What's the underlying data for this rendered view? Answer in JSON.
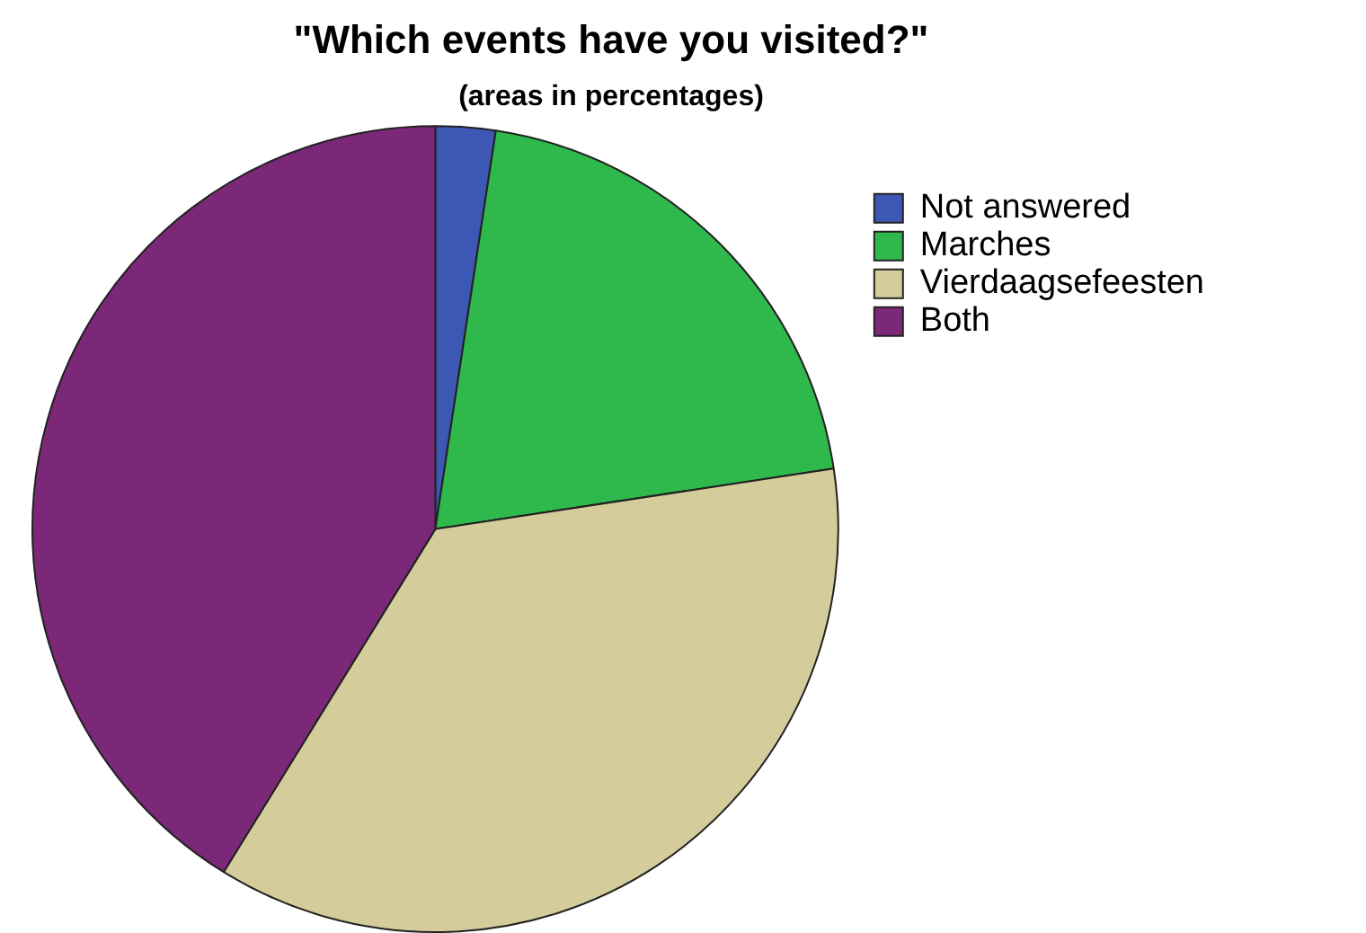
{
  "chart_data": {
    "type": "pie",
    "title": "\"Which events have you visited?\"",
    "subtitle": "(areas in percentages)",
    "categories": [
      "Not answered",
      "Marches",
      "Vierdaagsefeesten",
      "Both"
    ],
    "values": [
      2.4,
      20.2,
      36.2,
      41.2
    ],
    "colors": [
      "#3d57b5",
      "#2fb84b",
      "#d4cd9b",
      "#7b2878"
    ],
    "legend": "right"
  }
}
